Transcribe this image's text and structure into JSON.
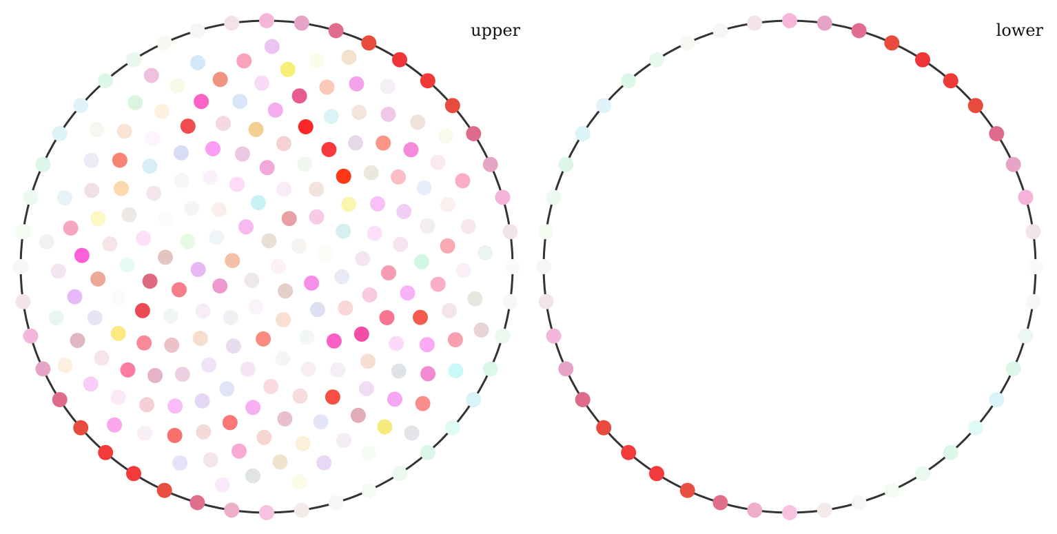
{
  "panels": [
    {
      "label": "upper",
      "boundary_colors": [
        "#f5b6d9",
        "#e6a3c8",
        "#e06c8f",
        "#e84c3d",
        "#f03538",
        "#f03a38",
        "#e84a3e",
        "#de6b8b",
        "#e6a4c6",
        "#f5b2da",
        "#f2e3e8",
        "#fafafa",
        "#f5f8f4",
        "#eaf8f0",
        "#ddf7ea",
        "#d9f3f8",
        "#e0fbf5",
        "#ddf6ea",
        "#eafaf0",
        "#f4fbf2",
        "#f6f6f6",
        "#f4eaea",
        "#f5c2df",
        "#ecaec9",
        "#e06f8c",
        "#e84f40",
        "#f23a3c",
        "#f23b3a",
        "#e84a3e",
        "#de6b8a",
        "#e6a5c8",
        "#f5b6db",
        "#f3e4ea",
        "#f6f6f6",
        "#f4fbf0",
        "#ebfaf1",
        "#ddf6ea",
        "#dcf3f8",
        "#e0f3fa",
        "#ddf8e9",
        "#e8f8ef",
        "#f5f9f2",
        "#f6f6f6",
        "#f3e3e8"
      ],
      "interior_colors": [
        "#fdf0f6",
        "#eee8e8",
        "#e8e0d5",
        "#e2d0c8",
        "#f5c0a8",
        "#f7f3f0",
        "#faf4fa",
        "#f8b9f0",
        "#f58fe9",
        "#ed9bcf",
        "#e7a0a4",
        "#f8dfd0",
        "#eef6fb",
        "#fbfbf8",
        "#f0f0f4",
        "#c8f3f6",
        "#e0e0f4",
        "#e8b8f5",
        "#f5cbe5",
        "#f98a7f",
        "#fbefed",
        "#e8eaf6",
        "#f7edf7",
        "#fbeaf8",
        "#f3f7f3",
        "#e6fbe3",
        "#d6eff0",
        "#e8dcef",
        "#fcdaf8",
        "#f8d7d9",
        "#f87d8a",
        "#f3e3dc",
        "#f4f6f4",
        "#f4f6f3",
        "#f4e6f0",
        "#f6ddcc",
        "#f2a8db",
        "#fb60c4",
        "#e0c5c0",
        "#f8f7ad",
        "#f4e4f4",
        "#fbf1fb",
        "#f9c9dd",
        "#f1f5f4",
        "#f2f8ef",
        "#f7eef0",
        "#fbfbfb",
        "#fcdffa",
        "#f0e2f7",
        "#ecc8e3",
        "#f24da4",
        "#df6983",
        "#ff3719",
        "#f8dadf",
        "#f8f6f8",
        "#f49db3",
        "#ebc2c8",
        "#f4d2d3",
        "#f7edf5",
        "#fbe0f8",
        "#f9c0f8",
        "#e2e2f8",
        "#fb9df2",
        "#f67591",
        "#ec4b54",
        "#f7393d",
        "#f7dcde",
        "#f4e6ee",
        "#f8e3f0",
        "#efd0e2",
        "#f3d091",
        "#f6ded3",
        "#e6fbf3",
        "#eae7dc",
        "#f7b0f2",
        "#d8dcf7",
        "#f8b2f7",
        "#f98999",
        "#fc2727",
        "#f74d43",
        "#ede8e3",
        "#f0cff3",
        "#e4d8f5",
        "#f4d8e2",
        "#fcd9f8",
        "#fcfbfb",
        "#e8d6e9",
        "#e9bfd0",
        "#d7eef6",
        "#d2f6e1",
        "#e5b2c8",
        "#f2acef",
        "#f2dbf4",
        "#f6e4e6",
        "#fbbfc3",
        "#fb7677",
        "#ef4d4f",
        "#f55a4e",
        "#fde981",
        "#daf3f6",
        "#e4e6f7",
        "#fbd8ad",
        "#f3edf1",
        "#f9bcf7",
        "#d7e7f8",
        "#dfe3e7",
        "#eca898",
        "#fb9586",
        "#f5d6d0",
        "#fdf4fd",
        "#fcadc8",
        "#fb7ba1",
        "#e65b92",
        "#e0adb8",
        "#fdf8c3",
        "#e7eefa",
        "#f2dbd7",
        "#fb63c4",
        "#fba9f4",
        "#e7e5f5",
        "#f4e4dc",
        "#fdf0d8",
        "#f78473",
        "#f8a9b1",
        "#f6cfd6",
        "#f7dbf9",
        "#f6a7f3",
        "#fc60d6",
        "#f48ad9",
        "#f9a9d6",
        "#fdf0df",
        "#f6e4ec",
        "#f6e4ea",
        "#fcc8b8",
        "#f4eef4",
        "#f2dfe6",
        "#fbf0ef",
        "#f7706e",
        "#ef947e",
        "#f18ad3",
        "#e6baf6",
        "#efc8e8",
        "#f0e2cc",
        "#f9e3d5",
        "#fbeff7",
        "#fce8f6",
        "#f7ef76",
        "#f7ec7b",
        "#f6a6be",
        "#fce8f0",
        "#f4e6e8",
        "#f6fbe8",
        "#f8a0af",
        "#e0b6c1",
        "#f1a2e8",
        "#e9d7f8",
        "#efeaf7",
        "#f6e6ee",
        "#f8eef5",
        "#f8a3bb",
        "#f98e8d",
        "#f4e5f2",
        "#f1e1db",
        "#e1e4e4",
        "#dcf5e0",
        "#e6e8e0",
        "#f8cef8",
        "#f8fcea",
        "#f7fbf6",
        "#e6f1f8",
        "#fbacc8",
        "#e8e2f8",
        "#d5e8f7",
        "#cbf8f8",
        "#e8f7ef",
        "#f4eef5",
        "#fbfbe8",
        "#f5f8f0",
        "#eaf5ee",
        "#f9a6ec",
        "#ecc4f1",
        "#e6e3e8",
        "#f1f1f3",
        "#f7fbec",
        "#fae9fa",
        "#f0c0e0",
        "#e8d4d4",
        "#fdefe0",
        "#f4e1d0"
      ]
    },
    {
      "label": "lower",
      "boundary_colors": [
        "#f5b6d9",
        "#e6a3c8",
        "#e06c8f",
        "#e84c3d",
        "#f03538",
        "#f03a38",
        "#e84a3e",
        "#de6b8b",
        "#e6a4c6",
        "#f5b2da",
        "#f2e3e8",
        "#fafafa",
        "#f5f8f4",
        "#eaf8f0",
        "#ddf7ea",
        "#d9f3f8",
        "#e0fbf5",
        "#ddf6ea",
        "#eafaf0",
        "#f4fbf2",
        "#f6f6f6",
        "#f4eaea",
        "#f5c2df",
        "#ecaec9",
        "#e06f8c",
        "#e84f40",
        "#f23a3c",
        "#f23b3a",
        "#e84a3e",
        "#de6b8a",
        "#e6a5c8",
        "#f5b6db",
        "#f3e4ea",
        "#f6f6f6",
        "#f4fbf0",
        "#ebfaf1",
        "#ddf6ea",
        "#dcf3f8",
        "#e0f3fa",
        "#ddf8e9",
        "#e8f8ef",
        "#f5f9f2",
        "#f6f6f6",
        "#f3e3e8"
      ],
      "interior_colors": []
    }
  ]
}
